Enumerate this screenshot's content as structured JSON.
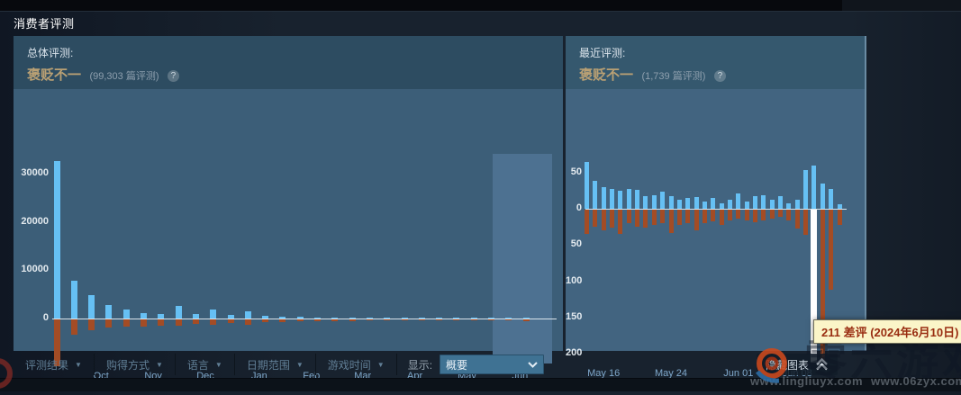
{
  "page": {
    "title": "消费者评测"
  },
  "icons": {
    "help": "?",
    "caret": "▼"
  },
  "overall": {
    "label": "总体评测:",
    "verdict": "褒贬不一",
    "count_text": "(99,303 篇评测)"
  },
  "recent": {
    "label": "最近评测:",
    "verdict": "褒贬不一",
    "count_text": "(1,739 篇评测)"
  },
  "chart_data": [
    {
      "id": "chart-overall",
      "type": "bar",
      "title": "总体评测",
      "ylim": [
        -10500,
        33500
      ],
      "grid": false,
      "y_ticks": [
        {
          "v": 30000,
          "label": "30000"
        },
        {
          "v": 20000,
          "label": "20000"
        },
        {
          "v": 10000,
          "label": "10000"
        },
        {
          "v": 0,
          "label": "0"
        }
      ],
      "x_ticks": [
        {
          "label": "Oct",
          "i": 2.55
        },
        {
          "label": "Nov",
          "i": 5.55
        },
        {
          "label": "Dec",
          "i": 8.55
        },
        {
          "label": "Jan",
          "i": 11.65
        },
        {
          "label": "Feb",
          "i": 14.65
        },
        {
          "label": "Mar",
          "i": 17.6
        },
        {
          "label": "Apr",
          "i": 20.6
        },
        {
          "label": "May",
          "i": 23.6
        },
        {
          "label": "Jun",
          "i": 26.65
        }
      ],
      "positive": [
        32500,
        7800,
        4900,
        2800,
        1800,
        1100,
        900,
        2600,
        900,
        1800,
        800,
        1450,
        500,
        400,
        300,
        250,
        200,
        200,
        150,
        150,
        120,
        120,
        100,
        100,
        100,
        100,
        100,
        80
      ],
      "negative": [
        -9700,
        -3100,
        -2300,
        -1700,
        -1500,
        -1400,
        -1300,
        -1300,
        -1000,
        -1100,
        -800,
        -1100,
        -600,
        -500,
        -400,
        -350,
        -300,
        -300,
        -250,
        -250,
        -200,
        -200,
        -150,
        -150,
        -150,
        -150,
        -200,
        -400
      ],
      "highlight_range": {
        "from_i": 25.08,
        "to_i": 28.5
      },
      "colors": {
        "positive": "#66c0f4",
        "negative": "#a34c25",
        "highlight_region": "#4d7191"
      }
    },
    {
      "id": "chart-recent",
      "type": "bar",
      "title": "最近评测",
      "ylim": [
        -220,
        70
      ],
      "grid": false,
      "y_ticks": [
        {
          "v": 50,
          "label": "50"
        },
        {
          "v": 0,
          "label": "0"
        },
        {
          "v": -50,
          "label": "50"
        },
        {
          "v": -100,
          "label": "100"
        },
        {
          "v": -150,
          "label": "150"
        },
        {
          "v": -200,
          "label": "200"
        }
      ],
      "x_ticks": [
        {
          "label": "May 16",
          "i": 2
        },
        {
          "label": "May 24",
          "i": 10
        },
        {
          "label": "Jun 01",
          "i": 18
        },
        {
          "label": "Jun 08",
          "i": 25
        }
      ],
      "positive": [
        65,
        39,
        30,
        27,
        25,
        27,
        26,
        17,
        19,
        23,
        17,
        12,
        15,
        16,
        10,
        15,
        8,
        12,
        21,
        10,
        17,
        19,
        13,
        17,
        8,
        12,
        53,
        60,
        35,
        27,
        6
      ],
      "negative": [
        -34,
        -24,
        -29,
        -25,
        -34,
        -19,
        -23,
        -25,
        -21,
        -19,
        -32,
        -21,
        -19,
        -29,
        -19,
        -16,
        -21,
        -15,
        -13,
        -15,
        -17,
        -15,
        -13,
        -10,
        -15,
        -26,
        -35,
        -211,
        -210,
        -111,
        -21
      ],
      "highlight_bar": 27,
      "colors": {
        "positive": "#66c0f4",
        "negative": "#a34c25",
        "highlight": "#ffffff"
      }
    }
  ],
  "filters": {
    "items": [
      {
        "key": "review-type",
        "label": "评测结果"
      },
      {
        "key": "purchase-type",
        "label": "购得方式"
      },
      {
        "key": "language",
        "label": "语言"
      },
      {
        "key": "date-range",
        "label": "日期范围"
      },
      {
        "key": "playtime",
        "label": "游戏时间"
      }
    ]
  },
  "display": {
    "label": "显示:",
    "value": "概要"
  },
  "hide_graph": {
    "label": "隐藏图表"
  },
  "tooltip": {
    "text": "211 差评 (2024年6月10日)"
  },
  "watermark": {
    "big_text": "零六游戏",
    "url_left": "www.lingliuyx.com",
    "url_right": "www.06zyx.com"
  }
}
